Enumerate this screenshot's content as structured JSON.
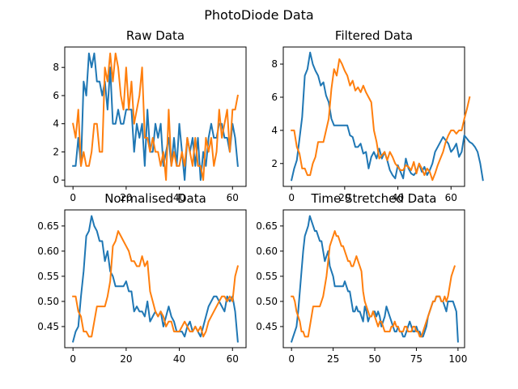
{
  "figure": {
    "suptitle": "PhotoDiode Data"
  },
  "colors": {
    "series_1": "#1f77b4",
    "series_2": "#ff7f0e"
  },
  "chart_data": [
    {
      "type": "line",
      "title": "Raw Data",
      "xlabel": "",
      "ylabel": "",
      "xlim": [
        -3.1,
        65.1
      ],
      "ylim": [
        -0.45,
        9.45
      ],
      "xticks": [
        0,
        20,
        40,
        60
      ],
      "yticks": [
        0,
        2,
        4,
        6,
        8
      ],
      "grid": false,
      "series": [
        {
          "color_key": "series_1",
          "y": [
            1,
            1,
            3,
            1,
            7,
            6,
            9,
            8,
            9,
            7,
            7,
            6,
            7,
            5,
            8,
            4,
            4,
            5,
            4,
            4,
            5,
            5,
            5,
            2,
            4,
            3,
            4,
            1,
            5,
            2,
            2,
            4,
            3,
            4,
            1,
            2,
            3,
            1,
            3,
            1,
            4,
            2,
            0,
            3,
            2,
            3,
            1,
            3,
            0,
            2,
            1,
            3,
            4,
            3,
            3,
            4,
            4,
            3,
            3,
            2,
            4,
            3,
            1
          ]
        },
        {
          "color_key": "series_2",
          "y": [
            4,
            3,
            5,
            1,
            2,
            1,
            1,
            2,
            4,
            4,
            2,
            2,
            8,
            7,
            9,
            7,
            9,
            8,
            6,
            5,
            8,
            5,
            7,
            4,
            5,
            6,
            8,
            3,
            3,
            2,
            3,
            2,
            2,
            1,
            2,
            0,
            5,
            1,
            2,
            1,
            1,
            2,
            1,
            3,
            2,
            1,
            3,
            1,
            1,
            0,
            3,
            2,
            3,
            1,
            2,
            5,
            3,
            4,
            5,
            2,
            5,
            5,
            6
          ]
        }
      ]
    },
    {
      "type": "line",
      "title": "Filtered Data",
      "xlabel": "",
      "ylabel": "",
      "xlim": [
        -3.1,
        65.1
      ],
      "ylim": [
        0.62,
        9.03
      ],
      "xticks": [
        0,
        20,
        40,
        60
      ],
      "yticks": [
        2,
        4,
        6,
        8
      ],
      "grid": false,
      "series": [
        {
          "color_key": "series_1",
          "y": [
            1.0,
            1.7,
            2.2,
            3.5,
            4.8,
            7.3,
            7.7,
            8.7,
            8.0,
            7.6,
            7.3,
            6.7,
            6.9,
            6.1,
            5.7,
            4.7,
            4.3,
            4.3,
            4.3,
            4.3,
            4.3,
            4.3,
            3.7,
            3.6,
            3.0,
            3.0,
            3.2,
            2.6,
            2.7,
            1.7,
            2.4,
            2.7,
            2.3,
            2.9,
            2.3,
            2.7,
            2.2,
            1.6,
            1.3,
            1.1,
            1.9,
            1.5,
            1.1,
            2.3,
            1.7,
            1.4,
            1.3,
            1.5,
            2.0,
            1.5,
            1.8,
            1.3,
            1.6,
            2.0,
            2.7,
            3.0,
            3.3,
            3.6,
            3.4,
            3.2,
            2.7,
            2.9,
            3.2,
            2.4,
            2.7,
            3.7,
            3.5,
            3.3,
            3.2,
            3.0,
            2.7,
            2.0,
            1.0
          ]
        },
        {
          "color_key": "series_2",
          "y": [
            4.0,
            4.0,
            3.0,
            2.6,
            1.7,
            1.7,
            1.3,
            1.3,
            2.0,
            2.4,
            3.3,
            3.3,
            3.3,
            4.0,
            4.7,
            6.5,
            7.7,
            7.3,
            8.3,
            8.0,
            7.6,
            7.3,
            6.7,
            7.0,
            6.4,
            6.6,
            6.3,
            6.7,
            6.3,
            6.0,
            5.7,
            4.0,
            3.3,
            2.3,
            2.5,
            2.7,
            2.2,
            2.7,
            2.4,
            2.0,
            1.8,
            1.6,
            1.6,
            1.9,
            1.8,
            1.6,
            2.1,
            1.4,
            2.0,
            1.7,
            1.3,
            1.7,
            1.5,
            1.0,
            1.4,
            1.9,
            2.3,
            2.7,
            3.3,
            3.7,
            4.0,
            4.0,
            3.8,
            4.0,
            4.0,
            4.7,
            5.3,
            6.0
          ]
        }
      ]
    },
    {
      "type": "line",
      "title": "Normalised Data",
      "xlabel": "",
      "ylabel": "",
      "xlim": [
        -3.1,
        65.1
      ],
      "ylim": [
        0.408,
        0.682
      ],
      "xticks": [
        0,
        20,
        40,
        60
      ],
      "yticks": [
        0.45,
        0.5,
        0.55,
        0.6,
        0.65
      ],
      "grid": false,
      "series": [
        {
          "color_key": "series_1",
          "y": [
            0.42,
            0.44,
            0.45,
            0.51,
            0.56,
            0.63,
            0.64,
            0.67,
            0.65,
            0.64,
            0.62,
            0.62,
            0.58,
            0.6,
            0.56,
            0.55,
            0.53,
            0.53,
            0.53,
            0.53,
            0.54,
            0.52,
            0.52,
            0.48,
            0.49,
            0.48,
            0.48,
            0.47,
            0.5,
            0.46,
            0.47,
            0.48,
            0.47,
            0.48,
            0.45,
            0.47,
            0.49,
            0.47,
            0.46,
            0.44,
            0.44,
            0.44,
            0.43,
            0.45,
            0.46,
            0.44,
            0.45,
            0.44,
            0.43,
            0.45,
            0.47,
            0.49,
            0.5,
            0.51,
            0.51,
            0.5,
            0.49,
            0.48,
            0.51,
            0.5,
            0.51,
            0.48,
            0.42
          ]
        },
        {
          "color_key": "series_2",
          "y": [
            0.51,
            0.51,
            0.48,
            0.47,
            0.44,
            0.44,
            0.43,
            0.43,
            0.46,
            0.49,
            0.49,
            0.49,
            0.49,
            0.51,
            0.54,
            0.61,
            0.62,
            0.64,
            0.63,
            0.62,
            0.61,
            0.6,
            0.58,
            0.58,
            0.57,
            0.57,
            0.59,
            0.57,
            0.58,
            0.52,
            0.5,
            0.48,
            0.47,
            0.48,
            0.47,
            0.45,
            0.46,
            0.46,
            0.44,
            0.44,
            0.44,
            0.45,
            0.46,
            0.45,
            0.44,
            0.44,
            0.45,
            0.44,
            0.45,
            0.43,
            0.44,
            0.46,
            0.47,
            0.48,
            0.49,
            0.5,
            0.51,
            0.51,
            0.5,
            0.51,
            0.5,
            0.55,
            0.57
          ]
        }
      ]
    },
    {
      "type": "line",
      "title": "Time Stretched Data",
      "xlabel": "",
      "ylabel": "",
      "xlim": [
        -4.95,
        103.95
      ],
      "ylim": [
        0.408,
        0.682
      ],
      "xticks": [
        0,
        25,
        50,
        75,
        100
      ],
      "yticks": [
        0.45,
        0.5,
        0.55,
        0.6,
        0.65
      ],
      "grid": false,
      "series": [
        {
          "color_key": "series_1",
          "y": [
            0.42,
            0.43,
            0.44,
            0.45,
            0.48,
            0.52,
            0.56,
            0.6,
            0.63,
            0.64,
            0.65,
            0.67,
            0.66,
            0.65,
            0.64,
            0.64,
            0.63,
            0.62,
            0.62,
            0.6,
            0.58,
            0.59,
            0.6,
            0.57,
            0.56,
            0.55,
            0.53,
            0.53,
            0.53,
            0.53,
            0.53,
            0.53,
            0.54,
            0.53,
            0.52,
            0.52,
            0.5,
            0.48,
            0.48,
            0.49,
            0.48,
            0.48,
            0.47,
            0.46,
            0.49,
            0.48,
            0.46,
            0.47,
            0.47,
            0.48,
            0.48,
            0.47,
            0.48,
            0.47,
            0.45,
            0.46,
            0.47,
            0.49,
            0.48,
            0.47,
            0.46,
            0.45,
            0.44,
            0.44,
            0.45,
            0.44,
            0.44,
            0.43,
            0.43,
            0.44,
            0.45,
            0.46,
            0.45,
            0.44,
            0.44,
            0.45,
            0.44,
            0.44,
            0.43,
            0.43,
            0.44,
            0.45,
            0.47,
            0.48,
            0.49,
            0.5,
            0.5,
            0.51,
            0.51,
            0.51,
            0.5,
            0.5,
            0.49,
            0.48,
            0.5,
            0.5,
            0.5,
            0.5,
            0.49,
            0.48,
            0.42
          ]
        },
        {
          "color_key": "series_2",
          "y": [
            0.51,
            0.51,
            0.5,
            0.48,
            0.47,
            0.46,
            0.44,
            0.44,
            0.43,
            0.43,
            0.43,
            0.45,
            0.47,
            0.49,
            0.49,
            0.49,
            0.49,
            0.49,
            0.5,
            0.51,
            0.53,
            0.55,
            0.58,
            0.61,
            0.62,
            0.63,
            0.64,
            0.63,
            0.63,
            0.62,
            0.61,
            0.61,
            0.6,
            0.59,
            0.58,
            0.58,
            0.57,
            0.57,
            0.58,
            0.59,
            0.58,
            0.57,
            0.56,
            0.52,
            0.5,
            0.49,
            0.48,
            0.47,
            0.47,
            0.48,
            0.47,
            0.46,
            0.45,
            0.46,
            0.46,
            0.45,
            0.44,
            0.44,
            0.44,
            0.44,
            0.45,
            0.45,
            0.46,
            0.45,
            0.45,
            0.44,
            0.44,
            0.44,
            0.45,
            0.45,
            0.44,
            0.44,
            0.44,
            0.45,
            0.45,
            0.44,
            0.44,
            0.43,
            0.43,
            0.44,
            0.45,
            0.46,
            0.47,
            0.48,
            0.49,
            0.5,
            0.5,
            0.51,
            0.51,
            0.51,
            0.5,
            0.5,
            0.51,
            0.5,
            0.51,
            0.53,
            0.55,
            0.56,
            0.57
          ]
        }
      ]
    }
  ]
}
